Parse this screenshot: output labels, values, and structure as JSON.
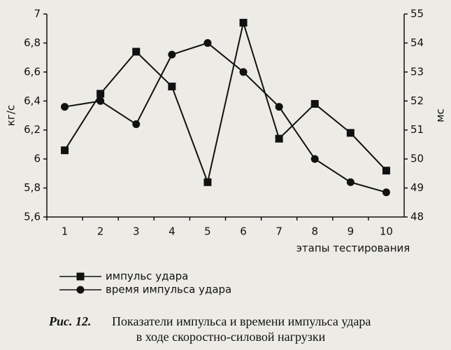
{
  "chart_data": {
    "type": "line",
    "figure_label": "Рис. 12.",
    "caption": [
      "Показатели импульса и времени импульса удара",
      "в ходе скоростно-силовой нагрузки"
    ],
    "xlabel": "этапы тестирования",
    "ylabel": "кг/с",
    "y2label": "мс",
    "categories": [
      "1",
      "2",
      "3",
      "4",
      "5",
      "6",
      "7",
      "8",
      "9",
      "10"
    ],
    "series": [
      {
        "name": "импульс удара",
        "color": "#111111",
        "marker": "square",
        "values": [
          6.06,
          6.45,
          6.74,
          6.5,
          5.84,
          6.94,
          6.14,
          6.38,
          6.18,
          5.92
        ]
      },
      {
        "name": "время импульса удара",
        "color": "#111111",
        "marker": "circle",
        "axis": "y2",
        "values": [
          51.8,
          52.0,
          51.2,
          53.6,
          54.0,
          53.0,
          51.8,
          50.0,
          49.2,
          48.85
        ]
      }
    ],
    "ylim": [
      5.6,
      7
    ],
    "yticks": [
      {
        "value": 5.6,
        "label": "5,6"
      },
      {
        "value": 5.8,
        "label": "5,8"
      },
      6,
      {
        "value": 6.2,
        "label": "6,2"
      },
      {
        "value": 6.4,
        "label": "6,4"
      },
      {
        "value": 6.6,
        "label": "6,6"
      },
      {
        "value": 6.8,
        "label": "6,8"
      },
      7
    ],
    "y2lim": [
      48,
      55
    ],
    "y2ticks": [
      48,
      49,
      50,
      51,
      52,
      53,
      54,
      55
    ],
    "grid": false
  }
}
